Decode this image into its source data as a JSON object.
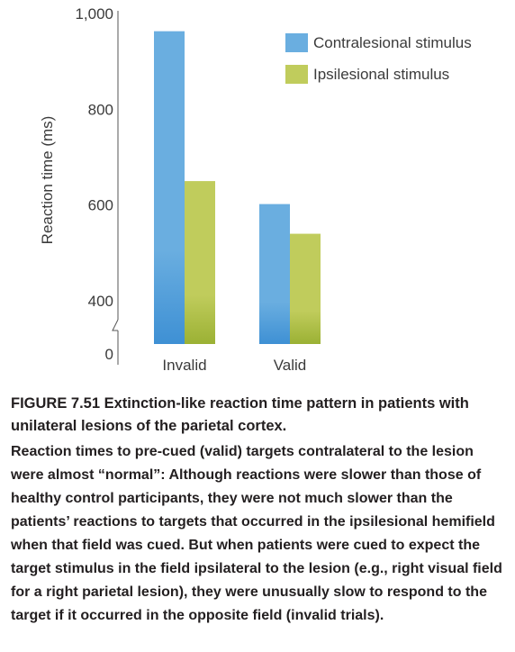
{
  "chart_data": {
    "type": "bar",
    "categories": [
      "Invalid",
      "Valid"
    ],
    "series": [
      {
        "name": "Contralesional stimulus",
        "color": "#6aaee0",
        "color_dark": "#3e90d4",
        "values": [
          963,
          602
        ]
      },
      {
        "name": "Ipsilesional stimulus",
        "color": "#c0cc5c",
        "color_dark": "#9bb134",
        "values": [
          650,
          540
        ]
      }
    ],
    "ylabel": "Reaction time (ms)",
    "xlabel": "",
    "yticks": [
      "0",
      "400",
      "600",
      "800",
      "1,000"
    ],
    "ylim": [
      0,
      1000
    ],
    "axis_break": [
      0,
      350
    ],
    "legend_position": "top-right",
    "grid": false
  },
  "caption": {
    "title": "FIGURE 7.51 Extinction-like reaction time pattern in patients with unilateral lesions of the parietal cortex.",
    "body": "Reaction times to pre-cued (valid) targets contralateral to the lesion were almost “normal”: Although reactions were slower than those of healthy control participants, they were not much slower than the patients’ reactions to targets that occurred in the ipsilesional hemifield when that field was cued. But when patients were cued to expect the target stimulus in the field ipsilateral to the lesion (e.g., right visual field for a right parietal lesion), they were unusually slow to respond to the target if it occurred in the opposite field (invalid trials)."
  }
}
